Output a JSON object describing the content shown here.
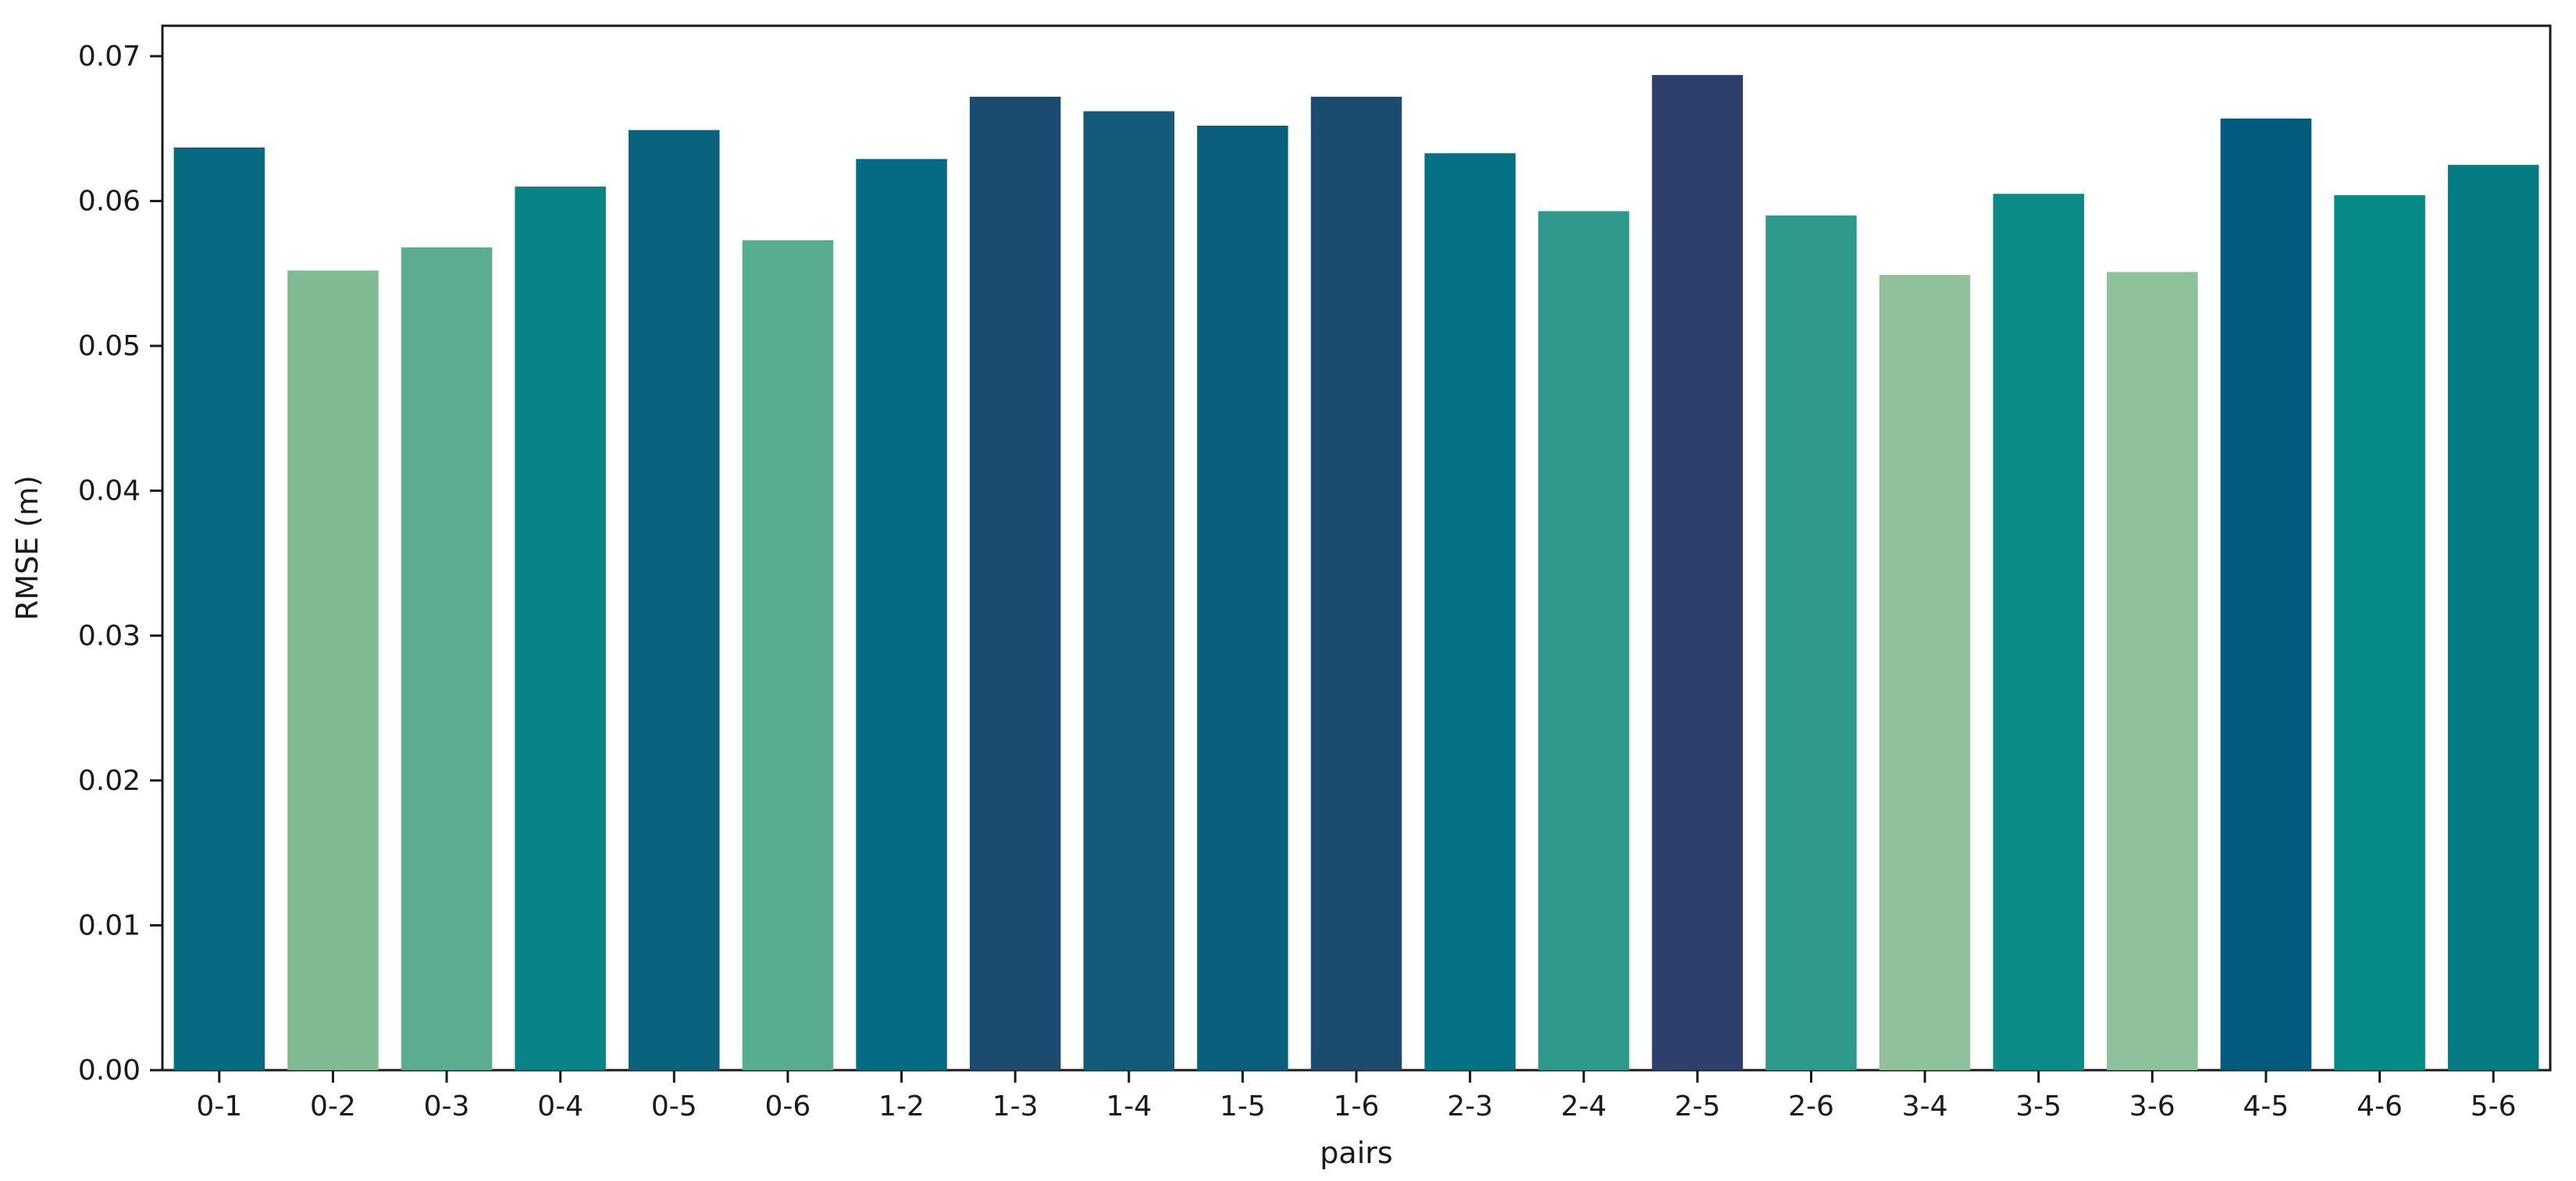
{
  "figure": {
    "background": "#ffffff"
  },
  "chart_data": {
    "type": "bar",
    "title": "",
    "xlabel": "pairs",
    "ylabel": "RMSE (m)",
    "categories": [
      "0-1",
      "0-2",
      "0-3",
      "0-4",
      "0-5",
      "0-6",
      "1-2",
      "1-3",
      "1-4",
      "1-5",
      "1-6",
      "2-3",
      "2-4",
      "2-5",
      "2-6",
      "3-4",
      "3-5",
      "3-6",
      "4-5",
      "4-6",
      "5-6"
    ],
    "values": [
      0.0637,
      0.0552,
      0.0568,
      0.061,
      0.0649,
      0.0573,
      0.0629,
      0.0672,
      0.0662,
      0.0652,
      0.0672,
      0.0633,
      0.0593,
      0.0687,
      0.059,
      0.0549,
      0.0605,
      0.0551,
      0.0657,
      0.0604,
      0.0625
    ],
    "bar_colors": [
      "#066a83",
      "#80ba92",
      "#5cad90",
      "#0a8388",
      "#09637f",
      "#58ac8f",
      "#056a83",
      "#1c4b70",
      "#145a7a",
      "#0a5f7e",
      "#1c4b70",
      "#047083",
      "#2f9a8b",
      "#2e3f6e",
      "#2f9a8b",
      "#8fc29a",
      "#0b8a87",
      "#8dc19a",
      "#045a7d",
      "#058a88",
      "#047a82"
    ],
    "ylim": [
      0,
      0.0721
    ],
    "yticks": [
      "0.00",
      "0.01",
      "0.02",
      "0.03",
      "0.04",
      "0.05",
      "0.06",
      "0.07"
    ],
    "grid": false,
    "legend": "none",
    "frame": true,
    "axis_color": "#1a1a1a"
  }
}
